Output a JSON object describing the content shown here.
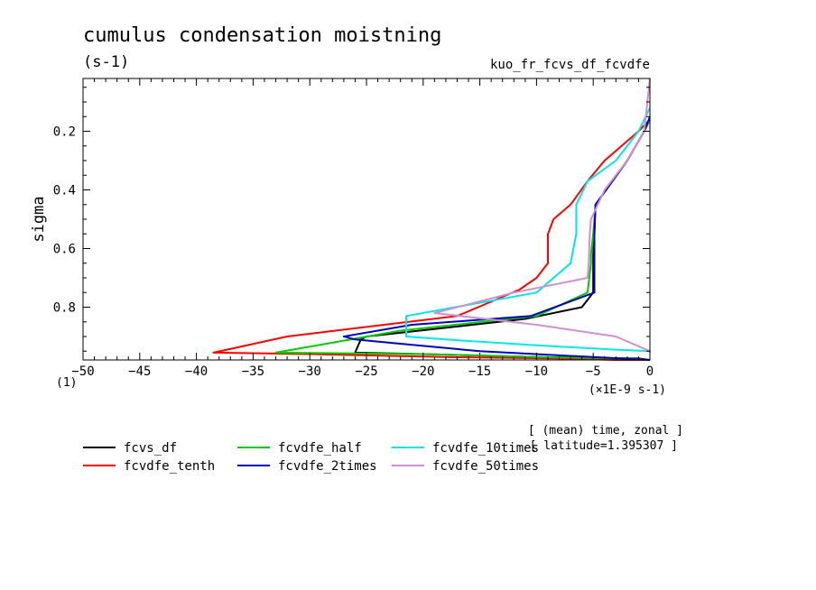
{
  "chart_data": {
    "type": "line",
    "title": "cumulus condensation moistning",
    "units": "(s-1)",
    "variable": "kuo_fr_fcvs_df_fcvdfe",
    "ylabel": "sigma",
    "y_units": "(1)",
    "x_units": "(×1E-9 s-1)",
    "xlim": [
      -50,
      0
    ],
    "ylim": [
      0.02,
      0.98
    ],
    "y_inverted": true,
    "x_ticks": [
      -50,
      -45,
      -40,
      -35,
      -30,
      -25,
      -20,
      -15,
      -10,
      -5,
      0
    ],
    "x_tick_labels": [
      "−50",
      "−45",
      "−40",
      "−35",
      "−30",
      "−25",
      "−20",
      "−15",
      "−10",
      "−5",
      "0"
    ],
    "y_ticks": [
      0.2,
      0.4,
      0.6,
      0.8
    ],
    "y_tick_labels": [
      "0.2",
      "0.4",
      "0.6",
      "0.8"
    ],
    "annotation": [
      "[ (mean) time, zonal ]",
      "[ latitude=1.395307 ]"
    ],
    "series": [
      {
        "name": "fcvs_df",
        "color": "#000000",
        "x": [
          0,
          -0.5,
          -2,
          -4.8,
          -4.9,
          -5.0,
          -5.0,
          -6,
          -11,
          -25,
          -25.5,
          -26,
          -20,
          -10,
          -1,
          0
        ],
        "y": [
          0.16,
          0.2,
          0.3,
          0.45,
          0.55,
          0.62,
          0.75,
          0.8,
          0.84,
          0.9,
          0.91,
          0.955,
          0.96,
          0.97,
          0.975,
          0.98
        ]
      },
      {
        "name": "fcvdfe_tenth",
        "color": "#ff0000",
        "x": [
          0,
          -1,
          -4,
          -5.5,
          -7,
          -8.5,
          -9,
          -9,
          -10,
          -11.5,
          -17,
          -32,
          -38.5,
          -30,
          -18,
          -8,
          -3,
          0
        ],
        "y": [
          0.16,
          0.2,
          0.3,
          0.37,
          0.45,
          0.5,
          0.55,
          0.65,
          0.7,
          0.74,
          0.83,
          0.9,
          0.955,
          0.96,
          0.97,
          0.975,
          0.98,
          0.98
        ]
      },
      {
        "name": "fcvdfe_half",
        "color": "#00cc00",
        "x": [
          0,
          -0.5,
          -2,
          -4.8,
          -5.0,
          -5.2,
          -5.2,
          -5.5,
          -10,
          -22,
          -33,
          -20,
          -10,
          -2,
          0
        ],
        "y": [
          0.16,
          0.2,
          0.3,
          0.45,
          0.55,
          0.62,
          0.65,
          0.75,
          0.83,
          0.88,
          0.955,
          0.96,
          0.97,
          0.975,
          0.98
        ]
      },
      {
        "name": "fcvdfe_2times",
        "color": "#0000c0",
        "x": [
          0,
          -0.5,
          -2,
          -4.8,
          -4.9,
          -4.9,
          -4.9,
          -10.5,
          -21,
          -27,
          -26,
          -15,
          -5,
          0
        ],
        "y": [
          0.15,
          0.2,
          0.3,
          0.45,
          0.55,
          0.65,
          0.75,
          0.83,
          0.86,
          0.9,
          0.91,
          0.95,
          0.97,
          0.98
        ]
      },
      {
        "name": "fcvdfe_10times",
        "color": "#00e8e8",
        "x": [
          0,
          -1,
          -3,
          -5.5,
          -6.5,
          -6.5,
          -7,
          -10,
          -21.5,
          -21.5,
          -18,
          -10,
          -3,
          0
        ],
        "y": [
          0.12,
          0.2,
          0.3,
          0.37,
          0.45,
          0.55,
          0.65,
          0.75,
          0.83,
          0.9,
          0.91,
          0.93,
          0.945,
          0.95
        ]
      },
      {
        "name": "fcvdfe_50times",
        "color": "#d090d0",
        "x": [
          0,
          -0.5,
          -2,
          -4,
          -5.2,
          -5.3,
          -5.4,
          -5.5,
          -12,
          -19,
          -10,
          -3,
          0,
          0
        ],
        "y": [
          0.02,
          0.2,
          0.3,
          0.4,
          0.5,
          0.55,
          0.65,
          0.7,
          0.75,
          0.82,
          0.86,
          0.9,
          0.95,
          0.955
        ]
      }
    ]
  }
}
